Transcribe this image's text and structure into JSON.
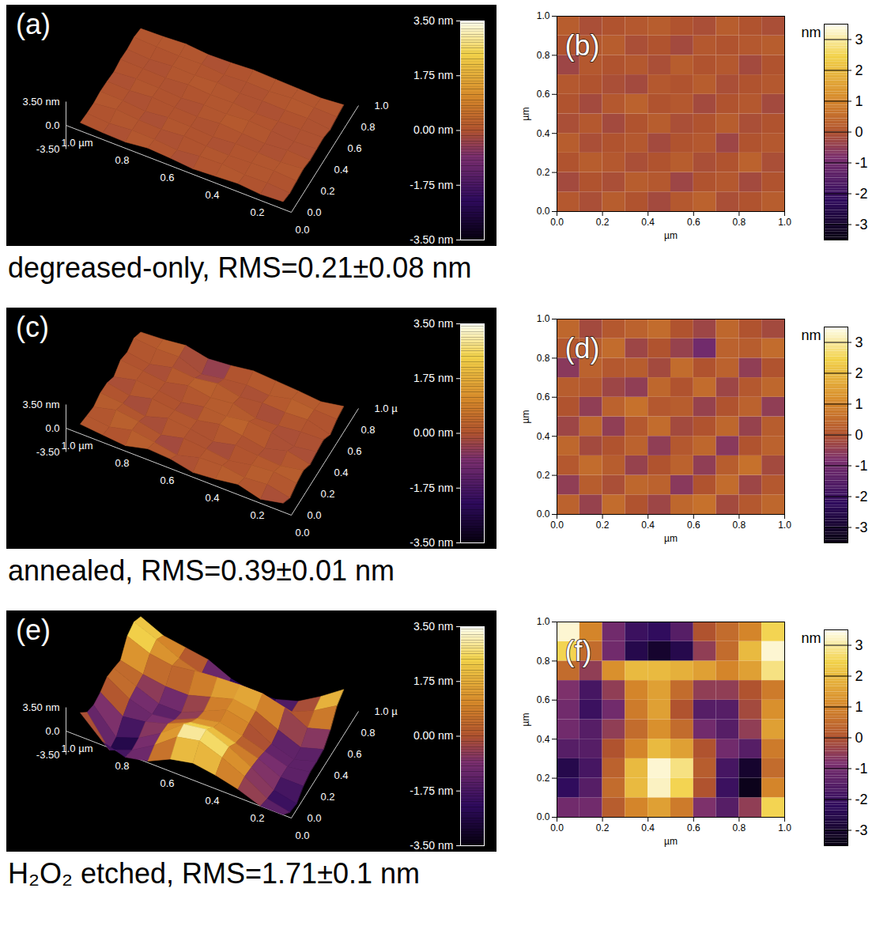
{
  "chart_data": [
    {
      "type": "afm_pair",
      "caption": "degreased-only, RMS=0.21±0.08 nm",
      "x": [
        0.05,
        0.15,
        0.25,
        0.35,
        0.45,
        0.55,
        0.65,
        0.75,
        0.85,
        0.95
      ],
      "y": [
        0.05,
        0.15,
        0.25,
        0.35,
        0.45,
        0.55,
        0.65,
        0.75,
        0.85,
        0.95
      ],
      "z": [
        [
          0.1,
          -0.1,
          0.2,
          0.0,
          -0.2,
          0.1,
          0.3,
          -0.1,
          0.0,
          0.2
        ],
        [
          -0.2,
          0.0,
          -0.1,
          0.2,
          0.1,
          -0.3,
          0.0,
          0.1,
          -0.2,
          0.0
        ],
        [
          0.0,
          0.2,
          0.1,
          -0.1,
          0.0,
          0.2,
          -0.1,
          0.0,
          0.3,
          -0.1
        ],
        [
          0.2,
          -0.1,
          0.0,
          0.1,
          -0.2,
          0.0,
          0.1,
          -0.3,
          0.0,
          0.1
        ],
        [
          -0.1,
          0.1,
          -0.2,
          0.0,
          0.2,
          -0.1,
          0.0,
          0.2,
          -0.1,
          0.0
        ],
        [
          0.0,
          -0.2,
          0.1,
          0.3,
          0.0,
          0.1,
          -0.2,
          0.0,
          0.1,
          -0.2
        ],
        [
          0.1,
          0.0,
          -0.1,
          -0.2,
          0.1,
          0.0,
          0.2,
          -0.1,
          0.0,
          0.1
        ],
        [
          -0.3,
          0.1,
          0.0,
          0.1,
          -0.1,
          0.2,
          0.0,
          0.1,
          -0.2,
          0.0
        ],
        [
          0.0,
          0.1,
          0.2,
          -0.1,
          0.0,
          -0.2,
          0.1,
          0.0,
          0.1,
          0.2
        ],
        [
          0.2,
          -0.1,
          0.0,
          0.1,
          0.2,
          0.0,
          -0.1,
          0.2,
          0.0,
          -0.1
        ]
      ],
      "panels": [
        {
          "letter": "(a)",
          "type": "surface3d",
          "xlim": [
            0,
            1
          ],
          "ylim": [
            0,
            1
          ],
          "zlim": [
            -3.5,
            3.5
          ],
          "xticks": [
            {
              "value": 1,
              "label": "1.0 µm"
            },
            0.8,
            0.6,
            0.4,
            0.2,
            {
              "value": 0,
              "label": "0.0"
            }
          ],
          "yticks": [
            {
              "value": 0,
              "label": "0.0"
            },
            0.2,
            0.4,
            0.6,
            0.8,
            {
              "value": 1,
              "label": "1.0"
            }
          ],
          "zticks": [
            {
              "value": 3.5,
              "label": "3.50 nm"
            },
            {
              "value": 0,
              "label": "0.0"
            },
            {
              "value": -3.5,
              "label": "-3.50"
            }
          ],
          "color_range": [
            -3.5,
            3.5
          ],
          "color_ticks": [
            {
              "value": 3.5,
              "label": "3.50 nm"
            },
            {
              "value": 1.75,
              "label": "1.75 nm"
            },
            {
              "value": 0,
              "label": "0.00 nm"
            },
            {
              "value": -1.75,
              "label": "-1.75 nm"
            },
            {
              "value": -3.5,
              "label": "-3.50 nm"
            }
          ]
        },
        {
          "letter": "(b)",
          "type": "heatmap",
          "xlim": [
            0,
            1
          ],
          "ylim": [
            0,
            1
          ],
          "xticks": [
            {
              "value": 0,
              "label": "0.0"
            },
            0.2,
            0.4,
            0.6,
            0.8,
            {
              "value": 1,
              "label": "1.0"
            }
          ],
          "yticks": [
            {
              "value": 0,
              "label": "0.0"
            },
            0.2,
            0.4,
            0.6,
            0.8,
            {
              "value": 1,
              "label": "1.0"
            }
          ],
          "xlabel": "µm",
          "ylabel": "µm",
          "color_label": "nm",
          "color_range": [
            -3.5,
            3.5
          ],
          "color_ticks": [
            -3,
            -2,
            -1,
            0,
            1,
            2,
            3
          ]
        }
      ]
    },
    {
      "type": "afm_pair",
      "caption": "annealed, RMS=0.39±0.01 nm",
      "x": [
        0.05,
        0.15,
        0.25,
        0.35,
        0.45,
        0.55,
        0.65,
        0.75,
        0.85,
        0.95
      ],
      "y": [
        0.05,
        0.15,
        0.25,
        0.35,
        0.45,
        0.55,
        0.65,
        0.75,
        0.85,
        0.95
      ],
      "z": [
        [
          0.3,
          -0.4,
          0.5,
          0.0,
          -0.3,
          0.4,
          0.6,
          -0.2,
          0.1,
          0.4
        ],
        [
          -0.5,
          0.2,
          -0.1,
          0.4,
          0.3,
          -0.6,
          0.0,
          0.5,
          -0.3,
          0.1
        ],
        [
          0.1,
          0.5,
          0.2,
          -0.4,
          0.0,
          0.3,
          -0.5,
          0.2,
          0.6,
          -0.2
        ],
        [
          0.4,
          -0.2,
          0.0,
          0.3,
          -0.5,
          0.1,
          0.4,
          -0.6,
          0.0,
          0.3
        ],
        [
          -0.3,
          0.4,
          -0.5,
          0.1,
          0.5,
          -0.2,
          0.0,
          0.4,
          -0.4,
          0.2
        ],
        [
          0.0,
          -0.5,
          0.3,
          0.6,
          0.1,
          0.2,
          -0.4,
          0.0,
          0.3,
          -0.5
        ],
        [
          0.2,
          0.1,
          -0.3,
          -0.5,
          0.4,
          0.0,
          0.5,
          -0.3,
          0.1,
          0.4
        ],
        [
          -0.6,
          0.3,
          0.1,
          0.2,
          -0.2,
          0.5,
          0.0,
          0.3,
          -0.5,
          0.0
        ],
        [
          0.1,
          0.2,
          0.5,
          -0.3,
          0.0,
          -0.4,
          -1.0,
          0.3,
          0.2,
          0.5
        ],
        [
          0.4,
          -0.2,
          0.1,
          0.3,
          0.5,
          0.0,
          -0.3,
          0.4,
          0.0,
          -0.2
        ]
      ],
      "panels": [
        {
          "letter": "(c)",
          "type": "surface3d",
          "xlim": [
            0,
            1
          ],
          "ylim": [
            0,
            1
          ],
          "zlim": [
            -3.5,
            3.5
          ],
          "xticks": [
            {
              "value": 1,
              "label": "1.0 µm"
            },
            0.8,
            0.6,
            0.4,
            0.2,
            {
              "value": 0,
              "label": "0.0"
            }
          ],
          "yticks": [
            {
              "value": 0,
              "label": "0.0"
            },
            0.2,
            0.4,
            0.6,
            0.8,
            {
              "value": 1,
              "label": "1.0 µ"
            }
          ],
          "zticks": [
            {
              "value": 3.5,
              "label": "3.50 nm"
            },
            {
              "value": 0,
              "label": "0.0"
            },
            {
              "value": -3.5,
              "label": "-3.50"
            }
          ],
          "color_range": [
            -3.5,
            3.5
          ],
          "color_ticks": [
            {
              "value": 3.5,
              "label": "3.50 nm"
            },
            {
              "value": 1.75,
              "label": "1.75 nm"
            },
            {
              "value": 0,
              "label": "0.00 nm"
            },
            {
              "value": -1.75,
              "label": "-1.75 nm"
            },
            {
              "value": -3.5,
              "label": "-3.50 nm"
            }
          ]
        },
        {
          "letter": "(d)",
          "type": "heatmap",
          "xlim": [
            0,
            1
          ],
          "ylim": [
            0,
            1
          ],
          "xticks": [
            {
              "value": 0,
              "label": "0.0"
            },
            0.2,
            0.4,
            0.6,
            0.8,
            {
              "value": 1,
              "label": "1.0"
            }
          ],
          "yticks": [
            {
              "value": 0,
              "label": "0.0"
            },
            0.2,
            0.4,
            0.6,
            0.8,
            {
              "value": 1,
              "label": "1.0"
            }
          ],
          "xlabel": "µm",
          "ylabel": "µm",
          "color_label": "nm",
          "color_range": [
            -3.5,
            3.5
          ],
          "color_ticks": [
            -3,
            -2,
            -1,
            0,
            1,
            2,
            3
          ]
        }
      ]
    },
    {
      "type": "afm_pair",
      "caption": "H₂O₂ etched, RMS=1.71±0.1 nm",
      "x": [
        0.05,
        0.15,
        0.25,
        0.35,
        0.45,
        0.55,
        0.65,
        0.75,
        0.85,
        0.95
      ],
      "y": [
        0.05,
        0.15,
        0.25,
        0.35,
        0.45,
        0.55,
        0.65,
        0.75,
        0.85,
        0.95
      ],
      "z": [
        [
          -1.0,
          -1.0,
          0.2,
          1.0,
          1.5,
          0.8,
          -0.8,
          -1.5,
          -0.5,
          2.5
        ],
        [
          -2.2,
          -1.5,
          0.5,
          2.0,
          3.2,
          2.5,
          0.0,
          -2.0,
          -3.3,
          1.0
        ],
        [
          -2.5,
          -1.8,
          0.3,
          2.0,
          3.3,
          2.8,
          0.2,
          -1.8,
          -3.0,
          0.5
        ],
        [
          -1.5,
          -1.5,
          0.0,
          1.0,
          2.0,
          1.5,
          0.0,
          -1.0,
          -1.5,
          0.8
        ],
        [
          -1.0,
          -1.5,
          -0.5,
          0.5,
          1.2,
          0.5,
          -1.0,
          -1.5,
          -0.5,
          1.5
        ],
        [
          -1.0,
          -2.0,
          -1.0,
          0.8,
          1.5,
          0.0,
          -1.5,
          -1.5,
          -0.2,
          1.2
        ],
        [
          -0.8,
          -1.8,
          -0.5,
          1.0,
          1.5,
          0.5,
          -0.5,
          -0.5,
          0.0,
          0.8
        ],
        [
          0.5,
          -0.5,
          1.2,
          2.0,
          2.0,
          1.8,
          1.5,
          1.0,
          1.5,
          2.8
        ],
        [
          2.5,
          0.5,
          -1.0,
          -2.5,
          -3.0,
          -2.5,
          -0.5,
          0.5,
          2.0,
          3.3
        ],
        [
          3.3,
          1.0,
          -1.0,
          -2.0,
          -2.2,
          -1.5,
          0.0,
          0.5,
          1.0,
          2.5
        ]
      ],
      "panels": [
        {
          "letter": "(e)",
          "type": "surface3d",
          "xlim": [
            0,
            1
          ],
          "ylim": [
            0,
            1
          ],
          "zlim": [
            -3.5,
            3.5
          ],
          "xticks": [
            {
              "value": 1,
              "label": "1.0 µm"
            },
            0.8,
            0.6,
            0.4,
            0.2,
            {
              "value": 0,
              "label": "0.0"
            }
          ],
          "yticks": [
            {
              "value": 0,
              "label": "0.0"
            },
            0.2,
            0.4,
            0.6,
            0.8,
            {
              "value": 1,
              "label": "1.0 µ"
            }
          ],
          "zticks": [
            {
              "value": 3.5,
              "label": "3.50 nm"
            },
            {
              "value": 0,
              "label": "0.0"
            },
            {
              "value": -3.5,
              "label": "-3.50"
            }
          ],
          "color_range": [
            -3.5,
            3.5
          ],
          "color_ticks": [
            {
              "value": 3.5,
              "label": "3.50 nm"
            },
            {
              "value": 1.75,
              "label": "1.75 nm"
            },
            {
              "value": 0,
              "label": "0.00 nm"
            },
            {
              "value": -1.75,
              "label": "-1.75 nm"
            },
            {
              "value": -3.5,
              "label": "-3.50 nm"
            }
          ]
        },
        {
          "letter": "(f)",
          "type": "heatmap",
          "xlim": [
            0,
            1
          ],
          "ylim": [
            0,
            1
          ],
          "xticks": [
            {
              "value": 0,
              "label": "0.0"
            },
            0.2,
            0.4,
            0.6,
            0.8,
            {
              "value": 1,
              "label": "1.0"
            }
          ],
          "yticks": [
            {
              "value": 0,
              "label": "0.0"
            },
            0.2,
            0.4,
            0.6,
            0.8,
            {
              "value": 1,
              "label": "1.0"
            }
          ],
          "xlabel": "µm",
          "ylabel": "µm",
          "color_label": "nm",
          "color_range": [
            -3.5,
            3.5
          ],
          "color_ticks": [
            -3,
            -2,
            -1,
            0,
            1,
            2,
            3
          ]
        }
      ]
    }
  ]
}
